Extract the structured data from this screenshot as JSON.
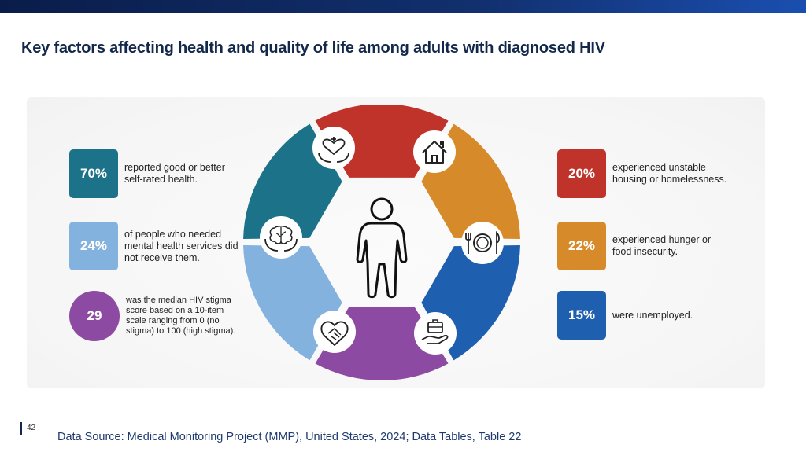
{
  "title": "Key factors affecting health and quality of life among adults with diagnosed HIV",
  "colors": {
    "teal": "#1c7288",
    "light_blue": "#84b2de",
    "purple": "#8c4aa2",
    "red": "#c0332b",
    "orange": "#d68a2a",
    "blue": "#1f5fb0"
  },
  "left_stats": [
    {
      "value": "70%",
      "text": "reported good or better self-rated health.",
      "color": "#1c7288"
    },
    {
      "value": "24%",
      "text": "of people who needed mental health services did not receive them.",
      "color": "#84b2de"
    },
    {
      "value": "29",
      "text": "was the median HIV stigma score based on a 10-item scale ranging from 0 (no stigma) to 100 (high stigma).",
      "color": "#8c4aa2"
    }
  ],
  "right_stats": [
    {
      "value": "20%",
      "text": "experienced unstable housing or homelessness.",
      "color": "#c0332b"
    },
    {
      "value": "22%",
      "text": "experienced hunger or food insecurity.",
      "color": "#d68a2a"
    },
    {
      "value": "15%",
      "text": "were unemployed.",
      "color": "#1f5fb0"
    }
  ],
  "wheel_icons": [
    "heart-hands-icon",
    "house-icon",
    "plate-fork-knife-icon",
    "briefcase-hand-icon",
    "handshake-heart-icon",
    "brain-hands-icon"
  ],
  "center_icon": "person-icon",
  "page_number": "42",
  "source": "Data Source: Medical Monitoring Project (MMP), United States, 2024; Data Tables, Table 22"
}
